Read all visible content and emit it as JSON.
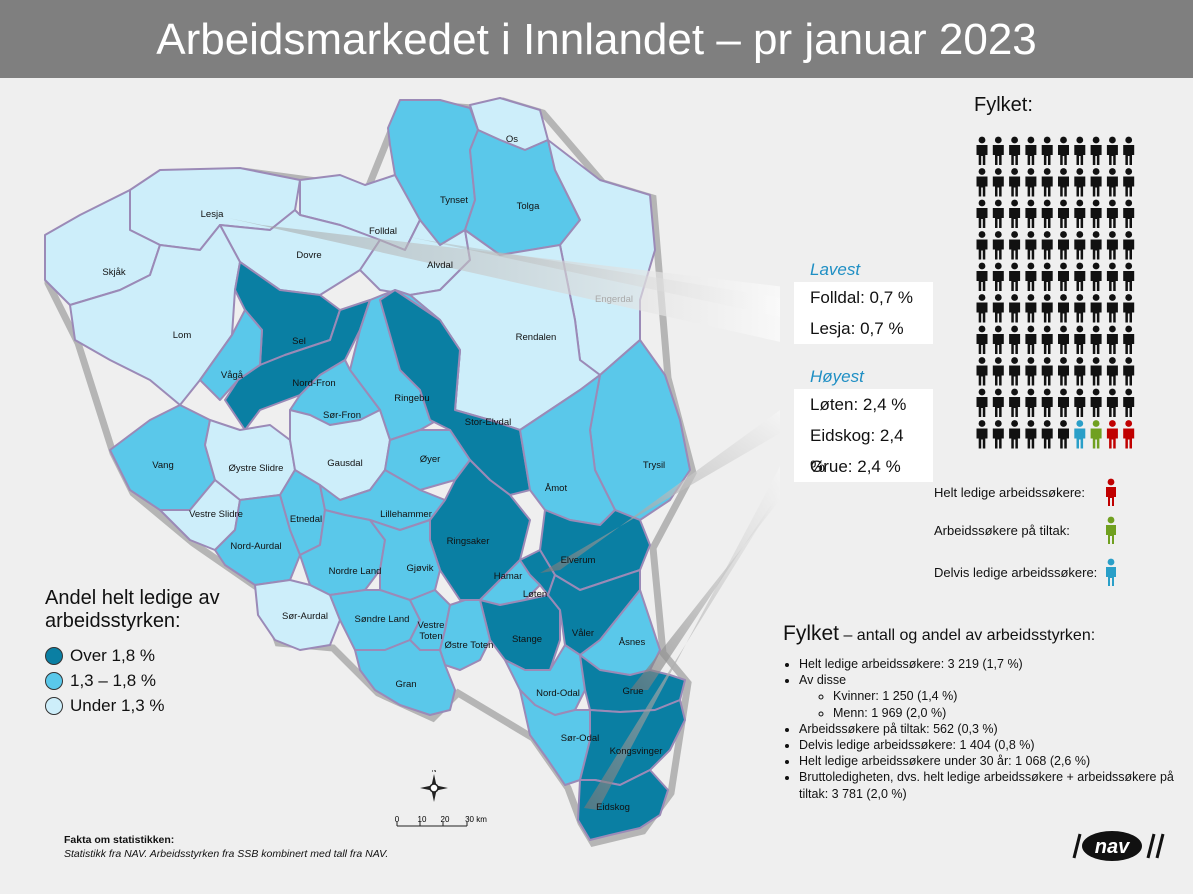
{
  "title": "Arbeidsmarkedet i Innlandet – pr januar 2023",
  "colors": {
    "high": "#0a7fa3",
    "mid": "#5ac8ea",
    "low": "#cdeefa",
    "border": "#9b8ab7",
    "helt": "#c00000",
    "tiltak": "#70a020",
    "delvis": "#2a9fc8"
  },
  "municipalities": [
    {
      "name": "Os",
      "level": "low"
    },
    {
      "name": "Tynset",
      "level": "mid"
    },
    {
      "name": "Tolga",
      "level": "mid"
    },
    {
      "name": "Lesja",
      "level": "low"
    },
    {
      "name": "Folldal",
      "level": "low"
    },
    {
      "name": "Dovre",
      "level": "low"
    },
    {
      "name": "Alvdal",
      "level": "low"
    },
    {
      "name": "Skjåk",
      "level": "low"
    },
    {
      "name": "Engerdal",
      "level": "low"
    },
    {
      "name": "Lom",
      "level": "low"
    },
    {
      "name": "Sel",
      "level": "high"
    },
    {
      "name": "Rendalen",
      "level": "low"
    },
    {
      "name": "Vågå",
      "level": "mid"
    },
    {
      "name": "Nord-Fron",
      "level": "high"
    },
    {
      "name": "Ringebu",
      "level": "mid"
    },
    {
      "name": "Sør-Fron",
      "level": "mid"
    },
    {
      "name": "Stor-Elvdal",
      "level": "high"
    },
    {
      "name": "Vang",
      "level": "mid"
    },
    {
      "name": "Øystre Slidre",
      "level": "low"
    },
    {
      "name": "Gausdal",
      "level": "low"
    },
    {
      "name": "Øyer",
      "level": "mid"
    },
    {
      "name": "Trysil",
      "level": "mid"
    },
    {
      "name": "Åmot",
      "level": "mid"
    },
    {
      "name": "Vestre Slidre",
      "level": "low"
    },
    {
      "name": "Etnedal",
      "level": "mid"
    },
    {
      "name": "Lillehammer",
      "level": "mid"
    },
    {
      "name": "Nord-Aurdal",
      "level": "mid"
    },
    {
      "name": "Ringsaker",
      "level": "high"
    },
    {
      "name": "Elverum",
      "level": "high"
    },
    {
      "name": "Nordre Land",
      "level": "mid"
    },
    {
      "name": "Gjøvik",
      "level": "mid"
    },
    {
      "name": "Hamar",
      "level": "mid"
    },
    {
      "name": "Løten",
      "level": "high"
    },
    {
      "name": "Sør-Aurdal",
      "level": "low"
    },
    {
      "name": "Søndre Land",
      "level": "mid"
    },
    {
      "name": "Vestre Toten",
      "level": "mid"
    },
    {
      "name": "Stange",
      "level": "high"
    },
    {
      "name": "Våler",
      "level": "high"
    },
    {
      "name": "Åsnes",
      "level": "mid"
    },
    {
      "name": "Østre Toten",
      "level": "mid"
    },
    {
      "name": "Gran",
      "level": "mid"
    },
    {
      "name": "Nord-Odal",
      "level": "mid"
    },
    {
      "name": "Grue",
      "level": "high"
    },
    {
      "name": "Sør-Odal",
      "level": "mid"
    },
    {
      "name": "Kongsvinger",
      "level": "high"
    },
    {
      "name": "Eidskog",
      "level": "high"
    }
  ],
  "lowest": {
    "heading": "Lavest",
    "items": [
      "Folldal: 0,7 %",
      "Lesja: 0,7 %"
    ]
  },
  "highest": {
    "heading": "Høyest",
    "items": [
      "Løten: 2,4 %",
      "Eidskog: 2,4 %",
      "Grue: 2,4 %"
    ]
  },
  "legend": {
    "title": "Andel helt ledige av arbeidsstyrken:",
    "items": [
      {
        "label": "Over 1,8 %",
        "color": "#0a7fa3"
      },
      {
        "label": "1,3 – 1,8 %",
        "color": "#5ac8ea"
      },
      {
        "label": "Under 1,3 %",
        "color": "#cdeefa"
      }
    ]
  },
  "facts": {
    "heading": "Fakta om statistikken:",
    "text": "Statistikk fra NAV. Arbeidsstyrken fra SSB kombinert med tall fra NAV."
  },
  "scale": {
    "labels": [
      "0",
      "10",
      "20",
      "30 km"
    ],
    "north": "N"
  },
  "fylket": {
    "title": "Fylket:",
    "pictogram": {
      "rows": 10,
      "cols": 10,
      "total": 100,
      "helt": 2,
      "tiltak": 1,
      "delvis": 1
    },
    "key": [
      {
        "label": "Helt ledige arbeidssøkere:",
        "color": "#c00000"
      },
      {
        "label": "Arbeidssøkere på tiltak:",
        "color": "#70a020"
      },
      {
        "label": "Delvis ledige arbeidssøkere:",
        "color": "#2a9fc8"
      }
    ]
  },
  "stats": {
    "heading": "Fylket",
    "subheading": " – antall og andel av arbeidsstyrken:",
    "items": [
      "Helt ledige arbeidssøkere: 3 219 (1,7 %)",
      "Av disse",
      "Arbeidssøkere på tiltak: 562 (0,3 %)",
      "Delvis ledige arbeidssøkere: 1 404 (0,8 %)",
      "Helt ledige arbeidssøkere under 30 år: 1 068 (2,6 %)",
      "Bruttoledigheten, dvs. helt ledige arbeidssøkere + arbeidssøkere på tiltak: 3 781 (2,0 %)"
    ],
    "sub_items": [
      "Kvinner: 1 250 (1,4 %)",
      "Menn: 1 969 (2,0 %)"
    ]
  },
  "logo": "nav"
}
